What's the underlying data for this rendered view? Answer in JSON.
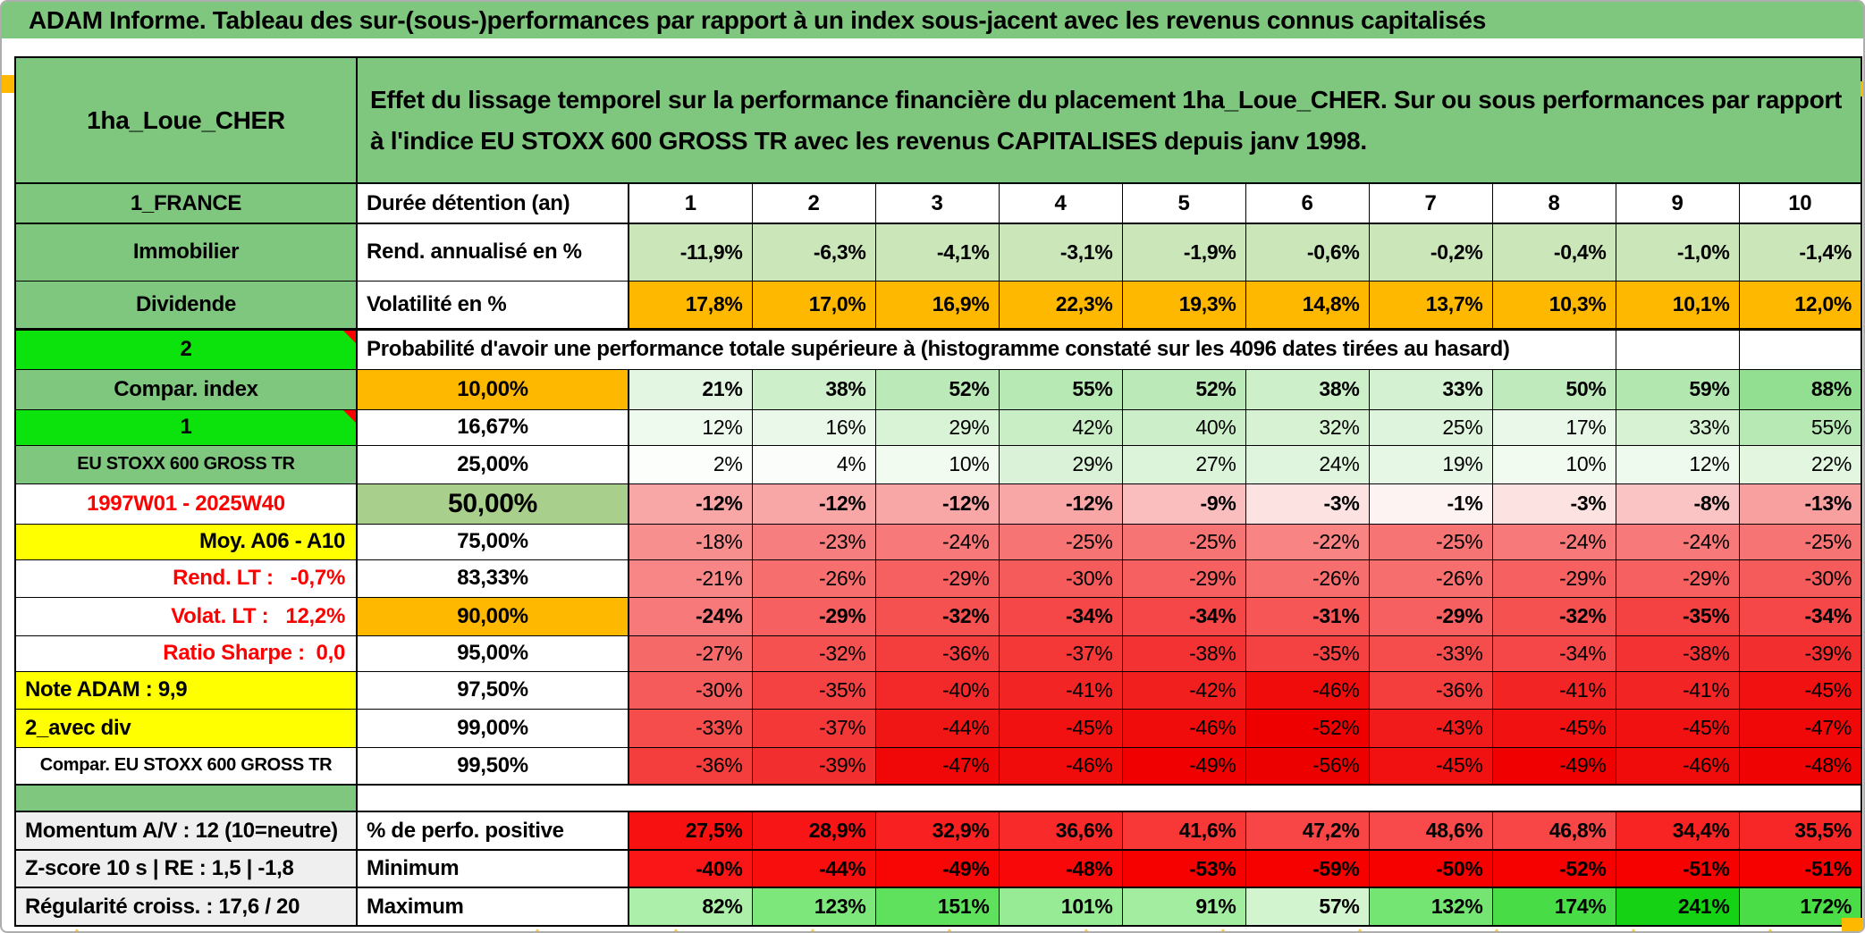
{
  "title": "ADAM Informe. Tableau des sur-(sous-)performances par rapport à un index sous-jacent avec les revenus connus capitalisés",
  "accent_colors": {
    "header_green": "#7FC67F",
    "bright_green": "#0CE30C",
    "orange": "#FFB800",
    "yellow": "#FFFF00",
    "mid_green": "#A9CF8D",
    "red_text": "#FF0000",
    "gray_label": "#EFEFEF"
  },
  "table": {
    "rows": [
      {
        "type": "head",
        "a": {
          "t": "1ha_Loue_CHER",
          "cls": "c-green name"
        },
        "b": {
          "t": "Effet du lissage temporel sur la performance financière du placement 1ha_Loue_CHER. Sur ou sous performances par rapport à l'indice EU STOXX 600 GROSS TR avec les revenus CAPITALISES depuis janv 1998.",
          "cls": "c-green desc left"
        },
        "cls": "tb2"
      },
      {
        "a": {
          "t": "1_FRANCE",
          "cls": "c-green"
        },
        "b": {
          "t": "Durée détention (an)",
          "cls": "left"
        },
        "cellCls": "hdrnum",
        "cells": [
          "1",
          "2",
          "3",
          "4",
          "5",
          "6",
          "7",
          "8",
          "9",
          "10"
        ],
        "cls": "tb2"
      },
      {
        "a": {
          "t": "Immobilier",
          "cls": "c-green"
        },
        "b": {
          "t": "Rend. annualisé en %",
          "cls": "left"
        },
        "bold": true,
        "cells": [
          "-11,9%",
          "-6,3%",
          "-4,1%",
          "-3,1%",
          "-1,9%",
          "-0,6%",
          "-0,2%",
          "-0,4%",
          "-1,0%",
          "-1,4%"
        ],
        "bg": [
          "#CBE7BA",
          "#CBE7BA",
          "#CBE7BA",
          "#CBE7BA",
          "#CBE7BA",
          "#CBE7BA",
          "#CBE7BA",
          "#CBE7BA",
          "#CBE7BA",
          "#CBE7BA"
        ]
      },
      {
        "a": {
          "t": "Dividende",
          "cls": "c-green"
        },
        "b": {
          "t": "Volatilité en %",
          "cls": "left"
        },
        "bold": true,
        "cells": [
          "17,8%",
          "17,0%",
          "16,9%",
          "22,3%",
          "19,3%",
          "14,8%",
          "13,7%",
          "10,3%",
          "10,1%",
          "12,0%"
        ],
        "bg": [
          "#FFB800",
          "#FFB800",
          "#FFB800",
          "#FFB800",
          "#FFB800",
          "#FFB800",
          "#FFB800",
          "#FFB800",
          "#FFB800",
          "#FFB800"
        ],
        "cls": "tb3"
      },
      {
        "type": "note",
        "a": {
          "t": "2",
          "cls": "c-bgreen",
          "corner": true
        },
        "b": {
          "t": "Probabilité d'avoir une performance totale supérieure à (histogramme constaté sur les 4096 dates tirées au hasard)",
          "cls": "notecell left"
        }
      },
      {
        "a": {
          "t": "Compar. index",
          "cls": "c-green"
        },
        "b": {
          "t": "10,00%",
          "cls": "c-orange"
        },
        "bold": true,
        "cells": [
          "21%",
          "38%",
          "52%",
          "55%",
          "52%",
          "38%",
          "33%",
          "50%",
          "59%",
          "88%"
        ],
        "bg": [
          "#E3F6E1",
          "#CDEFCA",
          "#BBEAB8",
          "#B7E9B4",
          "#BBEAB8",
          "#CDEFCA",
          "#D4F1D1",
          "#BFEBBC",
          "#B2E8AF",
          "#92DF92"
        ]
      },
      {
        "a": {
          "t": "1",
          "cls": "c-bgreen",
          "corner": true
        },
        "b": {
          "t": "16,67%",
          "cls": ""
        },
        "cells": [
          "12%",
          "16%",
          "29%",
          "42%",
          "40%",
          "32%",
          "25%",
          "17%",
          "33%",
          "55%"
        ],
        "bg": [
          "#EFFAEE",
          "#EAF8E9",
          "#D9F3D7",
          "#C9EEC6",
          "#CCEFC9",
          "#D6F2D3",
          "#DEF4DC",
          "#E9F8E8",
          "#D6F2D3",
          "#B7E9B4"
        ]
      },
      {
        "a": {
          "t": "EU STOXX 600 GROSS TR",
          "cls": "c-green small"
        },
        "b": {
          "t": "25,00%",
          "cls": ""
        },
        "cells": [
          "2%",
          "4%",
          "10%",
          "29%",
          "27%",
          "24%",
          "19%",
          "10%",
          "12%",
          "22%"
        ],
        "bg": [
          "#FCFEFC",
          "#FAFDF9",
          "#F1FBF0",
          "#DAF3D8",
          "#DCF4DA",
          "#E0F5DE",
          "#E7F7E5",
          "#F1FBF0",
          "#EFFAEE",
          "#E2F6E0"
        ]
      },
      {
        "a": {
          "t": "1997W01 - 2025W40",
          "cls": "red"
        },
        "b": {
          "t": "50,00%",
          "cls": "c-lgreen50 big"
        },
        "bold": true,
        "cells": [
          "-12%",
          "-12%",
          "-12%",
          "-12%",
          "-9%",
          "-3%",
          "-1%",
          "-3%",
          "-8%",
          "-13%"
        ],
        "bg": [
          "#F8A6A6",
          "#F8A6A6",
          "#F8A6A6",
          "#F8A6A6",
          "#FABEBE",
          "#FDE2E2",
          "#FEF3F3",
          "#FDE2E2",
          "#FAC4C4",
          "#F8A0A0"
        ]
      },
      {
        "a": {
          "t": "Moy. A06 - A10",
          "cls": "c-yellow right"
        },
        "b": {
          "t": "75,00%",
          "cls": ""
        },
        "cells": [
          "-18%",
          "-23%",
          "-24%",
          "-25%",
          "-25%",
          "-22%",
          "-25%",
          "-24%",
          "-24%",
          "-25%"
        ],
        "bg": [
          "#F88F8F",
          "#F77E7E",
          "#F77979",
          "#F77474",
          "#F77474",
          "#F88484",
          "#F77474",
          "#F77979",
          "#F77979",
          "#F77474"
        ]
      },
      {
        "a": {
          "t": "Rend. LT :   -0,7%",
          "cls": "red right"
        },
        "b": {
          "t": "83,33%",
          "cls": ""
        },
        "cells": [
          "-21%",
          "-26%",
          "-29%",
          "-30%",
          "-29%",
          "-26%",
          "-26%",
          "-29%",
          "-29%",
          "-30%"
        ],
        "bg": [
          "#F88686",
          "#F76E6E",
          "#F66060",
          "#F65B5B",
          "#F66060",
          "#F76E6E",
          "#F76E6E",
          "#F66060",
          "#F66060",
          "#F65B5B"
        ]
      },
      {
        "a": {
          "t": "Volat. LT :   12,2%",
          "cls": "red right"
        },
        "b": {
          "t": "90,00%",
          "cls": "c-orange"
        },
        "bold": true,
        "cells": [
          "-24%",
          "-29%",
          "-32%",
          "-34%",
          "-34%",
          "-31%",
          "-29%",
          "-32%",
          "-35%",
          "-34%"
        ],
        "bg": [
          "#F77979",
          "#F66060",
          "#F55151",
          "#F54747",
          "#F54747",
          "#F65656",
          "#F66060",
          "#F55151",
          "#F44242",
          "#F54747"
        ]
      },
      {
        "a": {
          "t": "Ratio Sharpe :  0,0",
          "cls": "red right"
        },
        "b": {
          "t": "95,00%",
          "cls": ""
        },
        "cells": [
          "-27%",
          "-32%",
          "-36%",
          "-37%",
          "-38%",
          "-35%",
          "-33%",
          "-34%",
          "-38%",
          "-39%"
        ],
        "bg": [
          "#F66969",
          "#F55151",
          "#F43D3D",
          "#F43838",
          "#F33333",
          "#F44242",
          "#F54C4C",
          "#F54747",
          "#F33333",
          "#F32E2E"
        ]
      },
      {
        "a": {
          "t": "Note ADAM : 9,9",
          "cls": "c-yellow left"
        },
        "b": {
          "t": "97,50%",
          "cls": ""
        },
        "cells": [
          "-30%",
          "-35%",
          "-40%",
          "-41%",
          "-42%",
          "-46%",
          "-36%",
          "-41%",
          "-41%",
          "-45%"
        ],
        "bg": [
          "#F65B5B",
          "#F44242",
          "#F32929",
          "#F22424",
          "#F21F1F",
          "#F10C0C",
          "#F43D3D",
          "#F22424",
          "#F22424",
          "#F11111"
        ]
      },
      {
        "a": {
          "t": "2_avec div",
          "cls": "c-yellow left"
        },
        "b": {
          "t": "99,00%",
          "cls": ""
        },
        "cells": [
          "-33%",
          "-37%",
          "-44%",
          "-45%",
          "-46%",
          "-52%",
          "-43%",
          "-45%",
          "-45%",
          "-47%"
        ],
        "bg": [
          "#F54C4C",
          "#F43838",
          "#F11616",
          "#F11111",
          "#F10C0C",
          "#EF0000",
          "#F21B1B",
          "#F11111",
          "#F11111",
          "#F00707"
        ]
      },
      {
        "a": {
          "t": "Compar. EU STOXX 600 GROSS TR",
          "cls": "small"
        },
        "b": {
          "t": "99,50%",
          "cls": ""
        },
        "cells": [
          "-36%",
          "-39%",
          "-47%",
          "-46%",
          "-49%",
          "-56%",
          "-45%",
          "-49%",
          "-46%",
          "-48%"
        ],
        "bg": [
          "#F43D3D",
          "#F32E2E",
          "#F00707",
          "#F10C0C",
          "#F00000",
          "#ED0000",
          "#F11111",
          "#F00000",
          "#F10C0C",
          "#F00303"
        ],
        "cls": "tb2"
      },
      {
        "type": "spacer",
        "a": {
          "t": "",
          "cls": "c-green"
        }
      },
      {
        "a": {
          "t": "Momentum A/V : 12 (10=neutre)",
          "cls": "c-gray left"
        },
        "b": {
          "t": "% de perfo. positive",
          "cls": "left"
        },
        "bold": true,
        "cells": [
          "27,5%",
          "28,9%",
          "32,9%",
          "36,6%",
          "41,6%",
          "47,2%",
          "48,6%",
          "46,8%",
          "34,4%",
          "35,5%"
        ],
        "bg": [
          "#F81111",
          "#F81515",
          "#F82020",
          "#F82A2A",
          "#F83737",
          "#F84545",
          "#F84A4A",
          "#F84545",
          "#F82424",
          "#F82727"
        ],
        "cls": "tt2 tb2"
      },
      {
        "a": {
          "t": "Z-score 10 s | RE : 1,5 | -1,8",
          "cls": "c-gray left"
        },
        "b": {
          "t": "Minimum",
          "cls": "left"
        },
        "bold": true,
        "cells": [
          "-40%",
          "-44%",
          "-49%",
          "-48%",
          "-53%",
          "-59%",
          "-50%",
          "-52%",
          "-51%",
          "-51%"
        ],
        "bg": [
          "#FA1616",
          "#F90E0E",
          "#F80505",
          "#F80808",
          "#F70000",
          "#F60000",
          "#F70000",
          "#F70000",
          "#F70000",
          "#F70000"
        ],
        "cls": "tb2"
      },
      {
        "a": {
          "t": "Régularité croiss. : 17,6 / 20",
          "cls": "c-gray left"
        },
        "b": {
          "t": "Maximum",
          "cls": "left"
        },
        "bold": true,
        "cells": [
          "82%",
          "123%",
          "151%",
          "101%",
          "91%",
          "57%",
          "132%",
          "174%",
          "241%",
          "172%"
        ],
        "bg": [
          "#ACEFAA",
          "#7EE77C",
          "#60E15E",
          "#97EB95",
          "#A2EDA0",
          "#D2F5D0",
          "#74E572",
          "#48DD46",
          "#16D214",
          "#4ADD48"
        ]
      }
    ]
  }
}
